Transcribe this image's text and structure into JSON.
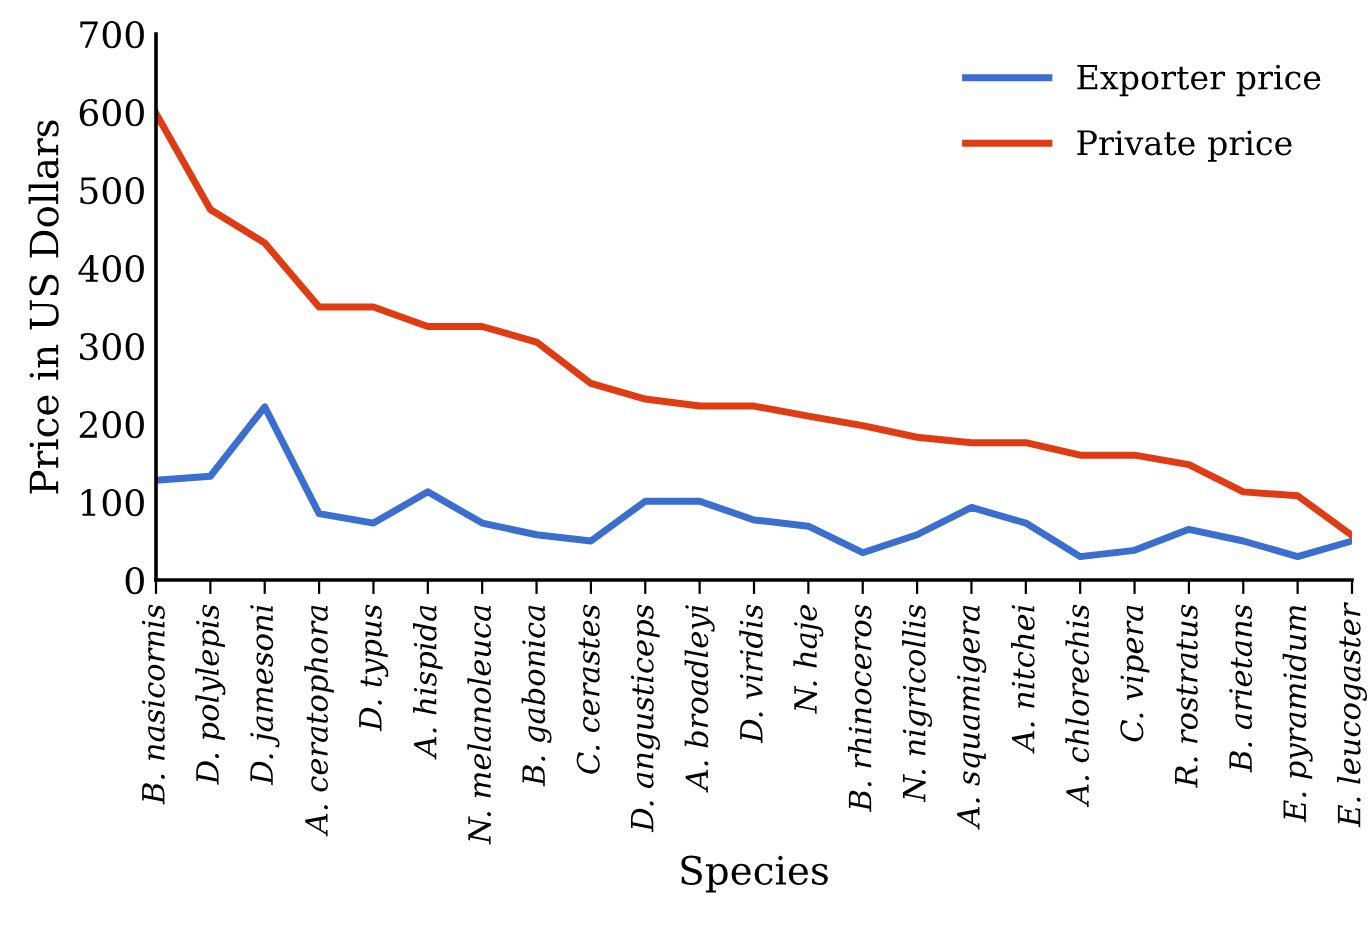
{
  "chart_data": {
    "type": "line",
    "xlabel": "Species",
    "ylabel": "Price in US Dollars",
    "categories": [
      "B. nasicornis",
      "D. polylepis",
      "D. jamesoni",
      "A. ceratophora",
      "D. typus",
      "A. hispida",
      "N. melanoleuca",
      "B. gabonica",
      "C. cerastes",
      "D. angusticeps",
      "A. broadleyi",
      "D. viridis",
      "N. haje",
      "B. rhinoceros",
      "N. nigricollis",
      "A. squamigera",
      "A. nitchei",
      "A. chlorechis",
      "C. vipera",
      "R. rostratus",
      "B. arietans",
      "E. pyramidum",
      "E. leucogaster"
    ],
    "series": [
      {
        "name": "Exporter price",
        "color": "#3a6fd0",
        "values": [
          128,
          133,
          222,
          85,
          73,
          113,
          73,
          58,
          50,
          101,
          101,
          77,
          69,
          35,
          58,
          93,
          73,
          30,
          38,
          65,
          50,
          30,
          50
        ]
      },
      {
        "name": "Private price",
        "color": "#e03c14",
        "values": [
          598,
          475,
          432,
          350,
          350,
          325,
          325,
          305,
          252,
          232,
          223,
          223,
          210,
          198,
          183,
          176,
          176,
          160,
          160,
          148,
          113,
          108,
          57
        ]
      }
    ],
    "ylim": [
      0,
      700
    ],
    "yticks": [
      0,
      100,
      200,
      300,
      400,
      500,
      600,
      700
    ],
    "grid": false,
    "legend": "top right",
    "marker": "none",
    "line_style": "solid"
  }
}
